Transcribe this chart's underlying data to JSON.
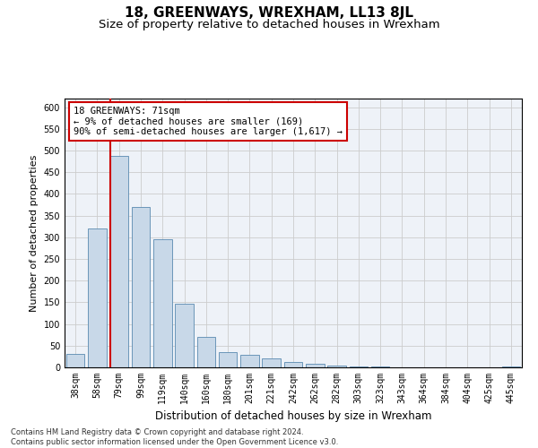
{
  "title": "18, GREENWAYS, WREXHAM, LL13 8JL",
  "subtitle": "Size of property relative to detached houses in Wrexham",
  "xlabel": "Distribution of detached houses by size in Wrexham",
  "ylabel": "Number of detached properties",
  "categories": [
    "38sqm",
    "58sqm",
    "79sqm",
    "99sqm",
    "119sqm",
    "140sqm",
    "160sqm",
    "180sqm",
    "201sqm",
    "221sqm",
    "242sqm",
    "262sqm",
    "282sqm",
    "303sqm",
    "323sqm",
    "343sqm",
    "364sqm",
    "384sqm",
    "404sqm",
    "425sqm",
    "445sqm"
  ],
  "values": [
    32,
    320,
    487,
    370,
    295,
    147,
    70,
    35,
    28,
    20,
    13,
    8,
    5,
    3,
    2,
    1,
    1,
    0,
    0,
    0,
    3
  ],
  "bar_color": "#c8d8e8",
  "bar_edge_color": "#5a8ab0",
  "vline_color": "#cc0000",
  "annotation_text": "18 GREENWAYS: 71sqm\n← 9% of detached houses are smaller (169)\n90% of semi-detached houses are larger (1,617) →",
  "annotation_box_color": "#ffffff",
  "annotation_box_edge_color": "#cc0000",
  "ylim": [
    0,
    620
  ],
  "yticks": [
    0,
    50,
    100,
    150,
    200,
    250,
    300,
    350,
    400,
    450,
    500,
    550,
    600
  ],
  "grid_color": "#cccccc",
  "background_color": "#eef2f8",
  "footer_text": "Contains HM Land Registry data © Crown copyright and database right 2024.\nContains public sector information licensed under the Open Government Licence v3.0.",
  "title_fontsize": 11,
  "subtitle_fontsize": 9.5,
  "xlabel_fontsize": 8.5,
  "ylabel_fontsize": 8,
  "tick_fontsize": 7,
  "annotation_fontsize": 7.5,
  "footer_fontsize": 6
}
